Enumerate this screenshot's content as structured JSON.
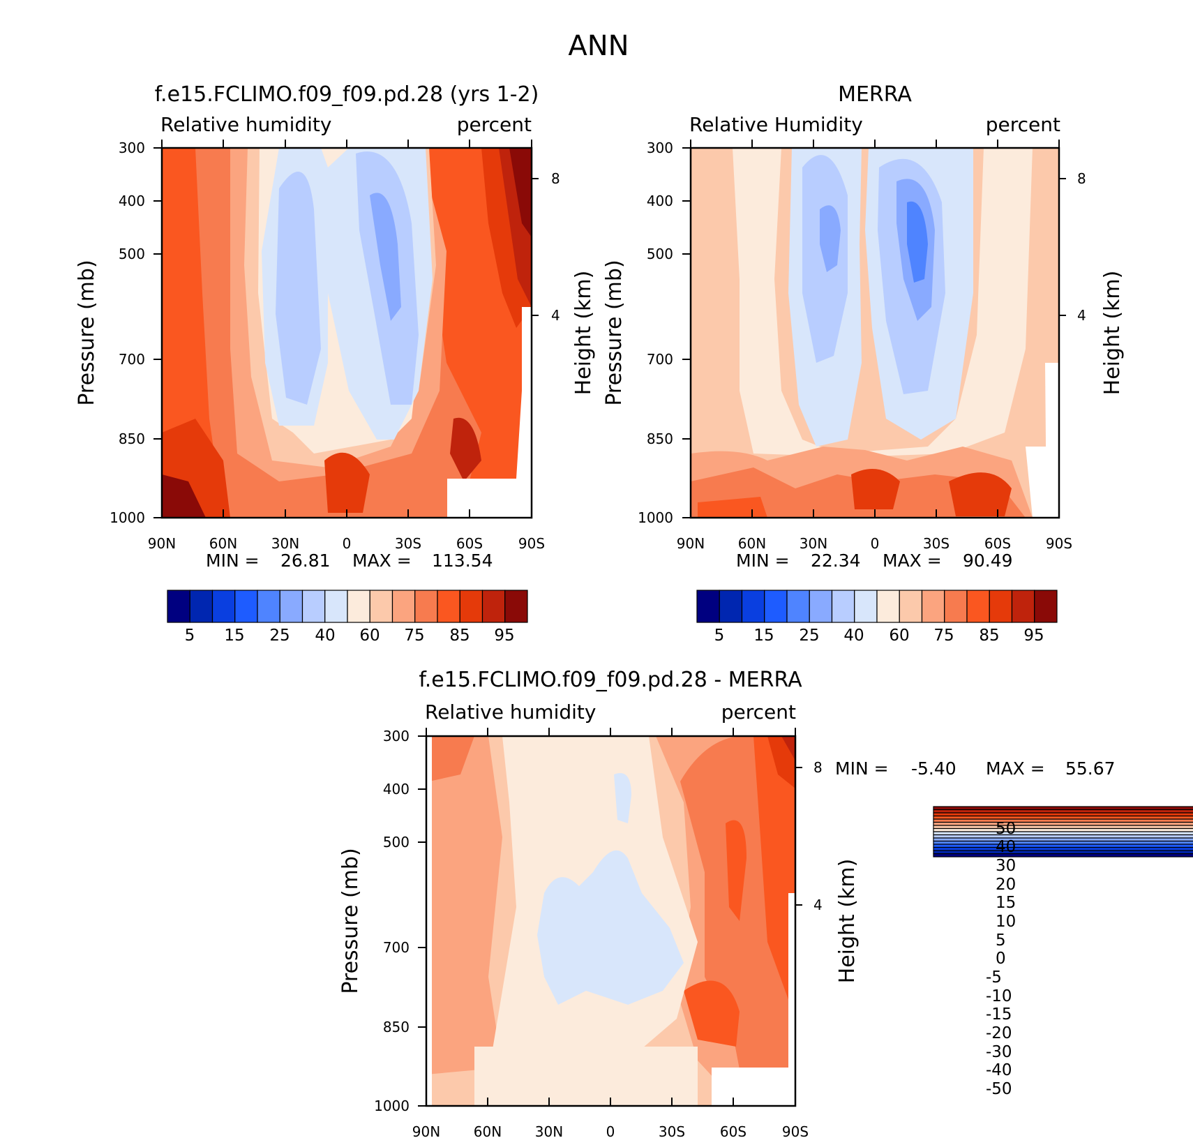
{
  "figure": {
    "title": "ANN"
  },
  "colors": {
    "abs_levels": [
      "#000080",
      "#0026b0",
      "#0a3fe0",
      "#1e5cff",
      "#4f84ff",
      "#89aaff",
      "#b8cdff",
      "#d8e6fb",
      "#fcebdc",
      "#fcc9ab",
      "#fba47f",
      "#f77b4f",
      "#fa5720",
      "#e53a0a",
      "#bf230c",
      "#8a0a07"
    ],
    "diff_levels": [
      "#8a0a07",
      "#bf230c",
      "#e53a0a",
      "#fa5720",
      "#f77b4f",
      "#fba47f",
      "#fcc9ab",
      "#fcebdc",
      "#d8e6fb",
      "#b8cdff",
      "#89aaff",
      "#4f84ff",
      "#1e5cff",
      "#0a3fe0",
      "#0026b0",
      "#000080"
    ]
  },
  "chart_data": [
    {
      "type": "heatmap",
      "title": "f.e15.FCLIMO.f09_f09.pd.28 (yrs 1-2)",
      "subtitle_left": "Relative humidity",
      "subtitle_right": "percent",
      "xlabel": "",
      "ylabel": "Pressure (mb)",
      "ylabel_right": "Height (km)",
      "x_ticks": [
        "90N",
        "60N",
        "30N",
        "0",
        "30S",
        "60S",
        "90S"
      ],
      "y_ticks": [
        "300",
        "400",
        "500",
        "700",
        "850",
        "1000"
      ],
      "y_right_ticks": [
        "8",
        "4"
      ],
      "stats": {
        "min_label": "MIN =",
        "min": "26.81",
        "max_label": "MAX =",
        "max": "113.54"
      },
      "colorbar_labels": [
        "5",
        "15",
        "25",
        "40",
        "60",
        "75",
        "85",
        "95"
      ],
      "axes": {
        "x": "latitude",
        "y": "pressure (log)"
      },
      "grid": false
    },
    {
      "type": "heatmap",
      "title": "MERRA",
      "subtitle_left": "Relative Humidity",
      "subtitle_right": "percent",
      "xlabel": "",
      "ylabel": "Pressure (mb)",
      "ylabel_right": "Height (km)",
      "x_ticks": [
        "90N",
        "60N",
        "30N",
        "0",
        "30S",
        "60S",
        "90S"
      ],
      "y_ticks": [
        "300",
        "400",
        "500",
        "700",
        "850",
        "1000"
      ],
      "y_right_ticks": [
        "8",
        "4"
      ],
      "stats": {
        "min_label": "MIN =",
        "min": "22.34",
        "max_label": "MAX =",
        "max": "90.49"
      },
      "colorbar_labels": [
        "5",
        "15",
        "25",
        "40",
        "60",
        "75",
        "85",
        "95"
      ],
      "axes": {
        "x": "latitude",
        "y": "pressure (log)"
      },
      "grid": false
    },
    {
      "type": "heatmap",
      "title": "f.e15.FCLIMO.f09_f09.pd.28 - MERRA",
      "subtitle_left": "Relative humidity",
      "subtitle_right": "percent",
      "xlabel": "",
      "ylabel": "Pressure (mb)",
      "ylabel_right": "Height (km)",
      "x_ticks": [
        "90N",
        "60N",
        "30N",
        "0",
        "30S",
        "60S",
        "90S"
      ],
      "y_ticks": [
        "300",
        "400",
        "500",
        "700",
        "850",
        "1000"
      ],
      "y_right_ticks": [
        "8",
        "4"
      ],
      "stats": {
        "min_label": "MIN =",
        "min": "-5.40",
        "max_label": "MAX =",
        "max": "55.67"
      },
      "colorbar_labels": [
        "50",
        "40",
        "30",
        "20",
        "15",
        "10",
        "5",
        "0",
        "-5",
        "-10",
        "-15",
        "-20",
        "-30",
        "-40",
        "-50"
      ],
      "axes": {
        "x": "latitude",
        "y": "pressure (log)"
      },
      "grid": false
    }
  ]
}
